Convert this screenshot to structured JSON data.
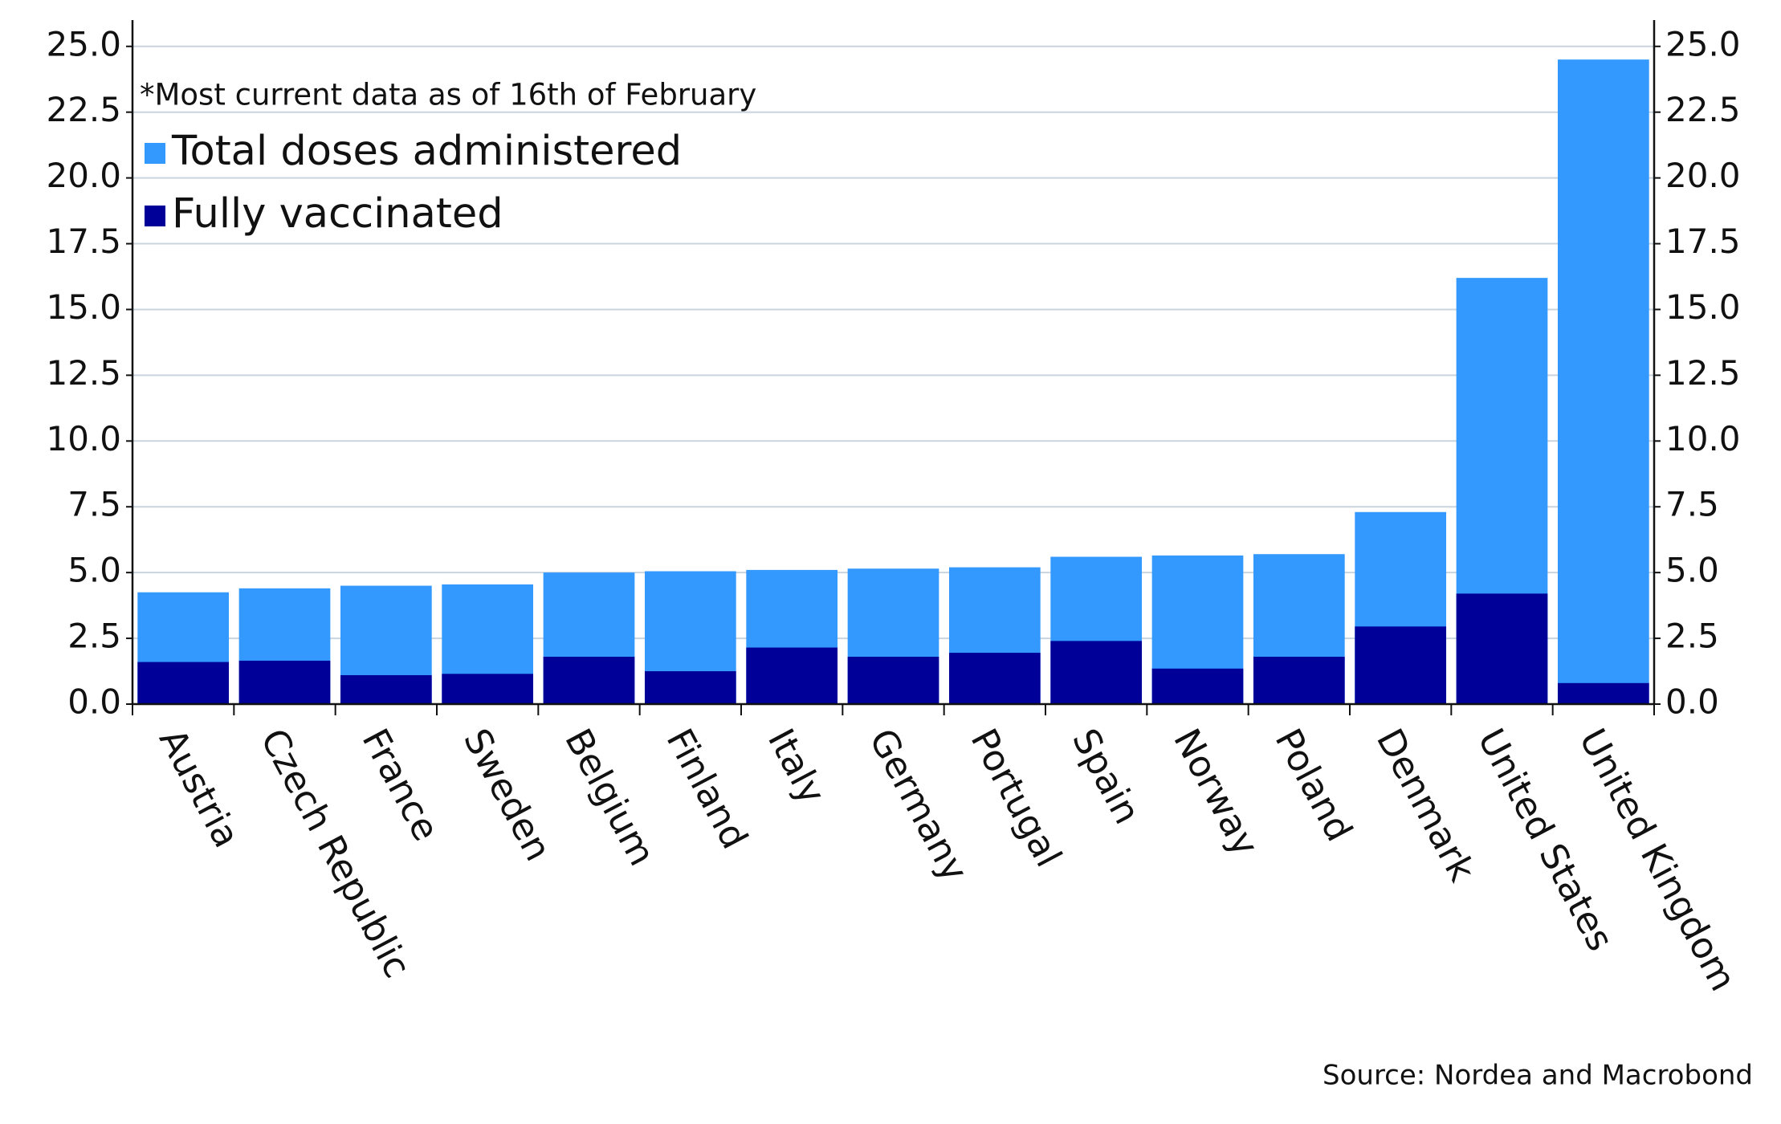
{
  "chart_data": {
    "type": "bar",
    "note": "*Most current data as of 16th of February",
    "source": "Source: Nordea and Macrobond",
    "categories": [
      "Austria",
      "Czech Republic",
      "France",
      "Sweden",
      "Belgium",
      "Finland",
      "Italy",
      "Germany",
      "Portugal",
      "Spain",
      "Norway",
      "Poland",
      "Denmark",
      "United States",
      "United Kingdom"
    ],
    "series": [
      {
        "name": "Total doses administered",
        "color": "#3399ff",
        "values": [
          4.25,
          4.4,
          4.5,
          4.55,
          5.0,
          5.05,
          5.1,
          5.15,
          5.2,
          5.6,
          5.65,
          5.7,
          7.3,
          16.2,
          24.5
        ]
      },
      {
        "name": "Fully vaccinated",
        "color": "#000099",
        "values": [
          1.6,
          1.65,
          1.1,
          1.15,
          1.8,
          1.25,
          2.15,
          1.8,
          1.95,
          2.4,
          1.35,
          1.8,
          2.95,
          4.2,
          0.8
        ]
      }
    ],
    "ylim": [
      0,
      26
    ],
    "yticks": [
      {
        "value": 0,
        "label": "0.0"
      },
      {
        "value": 2.5,
        "label": "2.5"
      },
      {
        "value": 5,
        "label": "5.0"
      },
      {
        "value": 7.5,
        "label": "7.5"
      },
      {
        "value": 10,
        "label": "10.0"
      },
      {
        "value": 12.5,
        "label": "12.5"
      },
      {
        "value": 15,
        "label": "15.0"
      },
      {
        "value": 17.5,
        "label": "17.5"
      },
      {
        "value": 20,
        "label": "20.0"
      },
      {
        "value": 22.5,
        "label": "22.5"
      },
      {
        "value": 25,
        "label": "25.0"
      }
    ],
    "y2lim": [
      0,
      26
    ],
    "y2ticks": [
      {
        "value": 0,
        "label": "0.0"
      },
      {
        "value": 2.5,
        "label": "2.5"
      },
      {
        "value": 5,
        "label": "5.0"
      },
      {
        "value": 7.5,
        "label": "7.5"
      },
      {
        "value": 10,
        "label": "10.0"
      },
      {
        "value": 12.5,
        "label": "12.5"
      },
      {
        "value": 15,
        "label": "15.0"
      },
      {
        "value": 17.5,
        "label": "17.5"
      },
      {
        "value": 20,
        "label": "20.0"
      },
      {
        "value": 22.5,
        "label": "22.5"
      },
      {
        "value": 25,
        "label": "25.0"
      }
    ],
    "grid": true,
    "legend": "upper left"
  }
}
